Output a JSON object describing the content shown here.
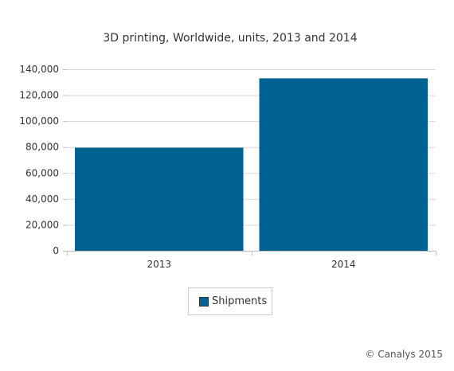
{
  "chart_data": {
    "type": "bar",
    "title": "3D printing, Worldwide, units, 2013 and 2014",
    "categories": [
      "2013",
      "2014"
    ],
    "series": [
      {
        "name": "Shipments",
        "values": [
          79500,
          133000
        ],
        "color": "#006290"
      }
    ],
    "ylim": [
      0,
      140000
    ],
    "yticks": [
      "0",
      "20,000",
      "40,000",
      "60,000",
      "80,000",
      "100,000",
      "120,000",
      "140,000"
    ],
    "ytick_values": [
      0,
      20000,
      40000,
      60000,
      80000,
      100000,
      120000,
      140000
    ],
    "grid": true,
    "legend": "bottom-center",
    "xlabel": "",
    "ylabel": ""
  },
  "credit": "© Canalys 2015"
}
